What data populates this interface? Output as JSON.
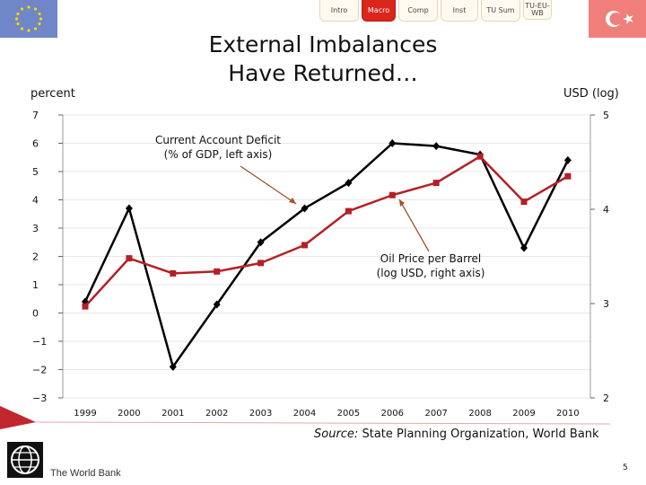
{
  "nav": {
    "tabs": [
      {
        "label": "Intro"
      },
      {
        "label": "Macro"
      },
      {
        "label": "Comp"
      },
      {
        "label": "Inst"
      },
      {
        "label": "TU Sum"
      },
      {
        "label_line1": "TU-EU-",
        "label_line2": "WB"
      }
    ],
    "active_tab": "Macro"
  },
  "slide": {
    "title_line1": "External Imbalances",
    "title_line2": "Have Returned…",
    "page_number": "5",
    "source_label": "Source:",
    "source_text": "State Planning Organization, World Bank",
    "footer_org": "The World Bank"
  },
  "colors": {
    "accent_red": "#c1272d",
    "series_black": "#000000",
    "series_red": "#b42025",
    "annotation_arrow": "#a0522d"
  },
  "chart_data": {
    "type": "line",
    "left_axis_label": "percent",
    "right_axis_label": "USD (log)",
    "x": [
      "1999",
      "2000",
      "2001",
      "2002",
      "2003",
      "2004",
      "2005",
      "2006",
      "2007",
      "2008",
      "2009",
      "2010"
    ],
    "left_axis": {
      "ylim": [
        -3,
        7
      ],
      "ticks": [
        "7",
        "6",
        "5",
        "4",
        "3",
        "2",
        "1",
        "0",
        "-1",
        "-2",
        "-3"
      ]
    },
    "right_axis": {
      "ylim": [
        2,
        5
      ],
      "ticks": [
        "5",
        "4",
        "3",
        "2"
      ]
    },
    "series": [
      {
        "name": "Current Account Deficit (% of GDP, left axis)",
        "axis": "left",
        "color": "#000000",
        "marker": "diamond",
        "values": [
          0.4,
          3.7,
          -1.9,
          0.3,
          2.5,
          3.7,
          4.6,
          6.0,
          5.9,
          5.6,
          2.3,
          5.4
        ]
      },
      {
        "name": "Oil Price per Barrel (log USD, right axis)",
        "axis": "right",
        "color": "#b42025",
        "marker": "square",
        "values": [
          2.97,
          3.48,
          3.32,
          3.34,
          3.43,
          3.62,
          3.98,
          4.15,
          4.28,
          4.56,
          4.08,
          4.35
        ]
      }
    ],
    "annotations": [
      {
        "line1": "Current Account Deficit",
        "line2": "(% of GDP, left axis)"
      },
      {
        "line1": "Oil Price per Barrel",
        "line2": "(log USD, right axis)"
      }
    ]
  }
}
